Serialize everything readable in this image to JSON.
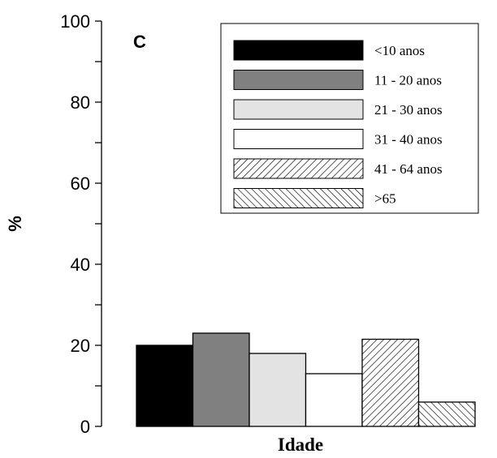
{
  "chart_data": {
    "type": "bar",
    "panel_label": "C",
    "xlabel": "Idade",
    "ylabel": "%",
    "ylim": [
      0,
      100
    ],
    "yticks": [
      "0",
      "20",
      "40",
      "60",
      "80",
      "100"
    ],
    "legend_position": "top-right",
    "grid": false,
    "series": [
      {
        "name": "<10 anos",
        "value": 20,
        "fill": "solid",
        "color": "#000000"
      },
      {
        "name": "11 - 20 anos",
        "value": 23,
        "fill": "solid",
        "color": "#808080"
      },
      {
        "name": "21 - 30 anos",
        "value": 18,
        "fill": "solid",
        "color": "#e3e3e3"
      },
      {
        "name": "31 - 40 anos",
        "value": 13,
        "fill": "solid",
        "color": "#ffffff"
      },
      {
        "name": "41 - 64 anos",
        "value": 21.5,
        "fill": "hatch-forward",
        "color": "#ffffff"
      },
      {
        "name": ">65",
        "value": 6,
        "fill": "hatch-back",
        "color": "#ffffff"
      }
    ]
  }
}
